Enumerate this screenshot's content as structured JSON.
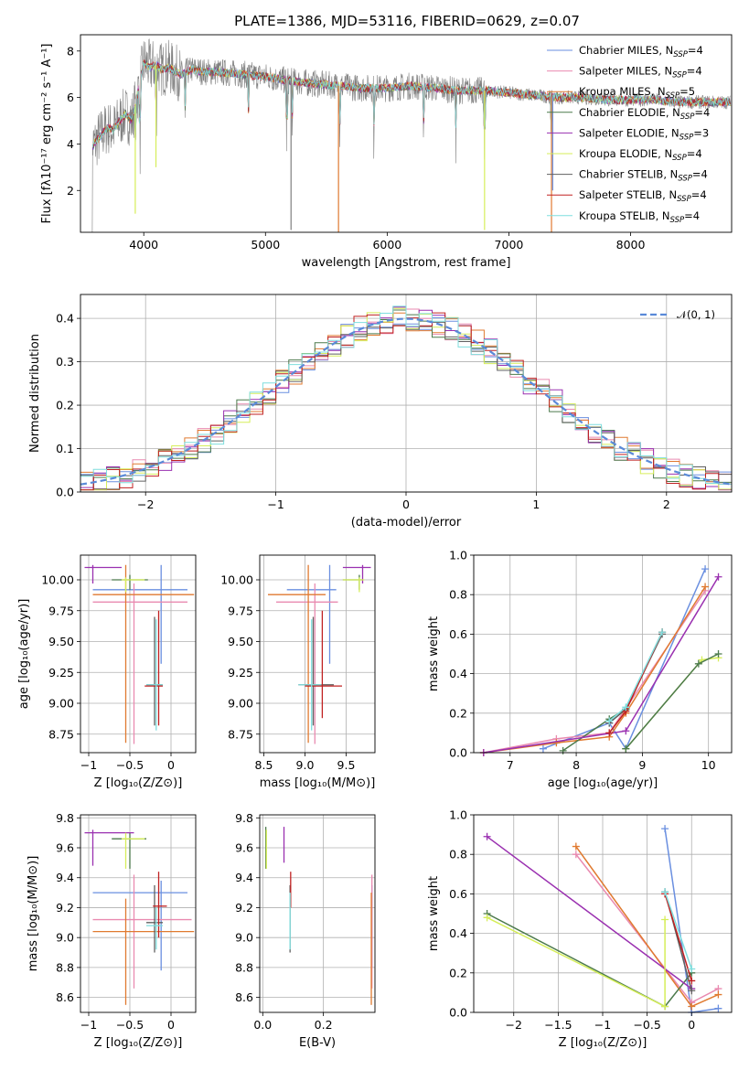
{
  "title": "PLATE=1386, MJD=53116, FIBERID=0629, z=0.07",
  "colors": {
    "Chabrier MILES": "#6a8fe0",
    "Salpeter MILES": "#e98ab0",
    "Kroupa MILES": "#e07a30",
    "Chabrier ELODIE": "#4c7a4c",
    "Salpeter ELODIE": "#9a30b0",
    "Kroupa ELODIE": "#d6ee5a",
    "Chabrier STELIB": "#606060",
    "Salpeter STELIB": "#c02020",
    "Kroupa STELIB": "#7fdede",
    "data": "#808080",
    "normal": "#5a8ad8"
  },
  "chart_data": [
    {
      "id": "spectrum",
      "type": "line",
      "xlabel": "wavelength [Angstrom, rest frame]",
      "ylabel": "Flux [fλ10⁻¹⁷ erg cm⁻² s⁻¹ A⁻¹]",
      "xlim": [
        3480,
        8830
      ],
      "ylim": [
        0.2,
        8.7
      ],
      "xticks": [
        4000,
        5000,
        6000,
        7000,
        8000
      ],
      "yticks": [
        2,
        4,
        6,
        8
      ],
      "legend_position": "right",
      "legend": [
        {
          "text": "Chabrier MILES, N",
          "sub": "SSP",
          "n": "=4",
          "color_key": "Chabrier MILES"
        },
        {
          "text": "Salpeter MILES, N",
          "sub": "SSP",
          "n": "=4",
          "color_key": "Salpeter MILES"
        },
        {
          "text": "Kroupa MILES, N",
          "sub": "SSP",
          "n": "=5",
          "color_key": "Kroupa MILES"
        },
        {
          "text": "Chabrier ELODIE, N",
          "sub": "SSP",
          "n": "=4",
          "color_key": "Chabrier ELODIE"
        },
        {
          "text": "Salpeter ELODIE, N",
          "sub": "SSP",
          "n": "=3",
          "color_key": "Salpeter ELODIE"
        },
        {
          "text": "Kroupa ELODIE, N",
          "sub": "SSP",
          "n": "=4",
          "color_key": "Kroupa ELODIE"
        },
        {
          "text": "Chabrier STELIB, N",
          "sub": "SSP",
          "n": "=4",
          "color_key": "Chabrier STELIB"
        },
        {
          "text": "Salpeter STELIB, N",
          "sub": "SSP",
          "n": "=4",
          "color_key": "Salpeter STELIB"
        },
        {
          "text": "Kroupa STELIB, N",
          "sub": "SSP",
          "n": "=4",
          "color_key": "Kroupa STELIB"
        }
      ],
      "model_continuum": {
        "x": [
          3580,
          3650,
          3700,
          3750,
          3800,
          3850,
          3900,
          3950,
          4000,
          4050,
          4100,
          4150,
          4200,
          4300,
          4400,
          4500,
          4600,
          4800,
          5000,
          5200,
          5400,
          5600,
          5800,
          6000,
          6200,
          6400,
          6600,
          6800,
          7000,
          7200,
          7400,
          7600,
          7800,
          8000,
          8200,
          8400,
          8600,
          8800
        ],
        "y": [
          3.9,
          4.4,
          4.7,
          4.6,
          5.0,
          5.3,
          5.0,
          6.2,
          7.5,
          7.3,
          7.4,
          7.2,
          7.3,
          7.0,
          7.2,
          7.1,
          7.1,
          7.0,
          6.9,
          6.7,
          6.6,
          6.5,
          6.4,
          6.4,
          6.5,
          6.4,
          6.3,
          6.3,
          6.2,
          6.1,
          6.0,
          6.0,
          5.9,
          5.9,
          5.9,
          5.8,
          5.8,
          5.8
        ]
      },
      "absorption_features": [
        3934,
        3969,
        4102,
        4340,
        4861,
        5175,
        5220,
        5610,
        5893,
        6300,
        6563,
        6800,
        7350
      ]
    },
    {
      "id": "residuals",
      "type": "histogram",
      "xlabel": "(data-model)/error",
      "ylabel": "Normed distribution",
      "xlim": [
        -2.5,
        2.5
      ],
      "ylim": [
        0,
        0.455
      ],
      "xticks": [
        -2,
        -1,
        0,
        1,
        2
      ],
      "yticks": [
        0.0,
        0.1,
        0.2,
        0.3,
        0.4
      ],
      "legend_position": "top-right",
      "legend_label": "𝒩(0, 1)",
      "bin_width": 0.1
    },
    {
      "id": "age-vs-Z",
      "type": "errorbar",
      "xlabel": "Z [log₁₀(Z/Z⊙)]",
      "ylabel": "age  [log₁₀(age/yr)]",
      "xlim": [
        -1.1,
        0.3
      ],
      "ylim": [
        8.6,
        10.2
      ],
      "xticks": [
        -1.0,
        -0.5,
        0.0
      ],
      "yticks": [
        8.75,
        9.0,
        9.25,
        9.5,
        9.75,
        10.0
      ],
      "points": [
        {
          "s": "Chabrier MILES",
          "x": -0.12,
          "xe": [
            -0.95,
            0.2
          ],
          "y": 9.92,
          "ye": [
            9.32,
            10.12
          ]
        },
        {
          "s": "Salpeter MILES",
          "x": -0.45,
          "xe": [
            -0.95,
            0.2
          ],
          "y": 9.82,
          "ye": [
            8.67,
            9.97
          ]
        },
        {
          "s": "Kroupa MILES",
          "x": -0.55,
          "xe": [
            -0.95,
            0.28
          ],
          "y": 9.88,
          "ye": [
            8.68,
            10.12
          ]
        },
        {
          "s": "Chabrier ELODIE",
          "x": -0.5,
          "xe": [
            -0.72,
            -0.28
          ],
          "y": 10.0,
          "ye": [
            9.92,
            10.04
          ]
        },
        {
          "s": "Salpeter ELODIE",
          "x": -0.95,
          "xe": [
            -1.05,
            -0.6
          ],
          "y": 10.1,
          "ye": [
            9.97,
            10.12
          ]
        },
        {
          "s": "Kroupa ELODIE",
          "x": -0.55,
          "xe": [
            -0.6,
            -0.32
          ],
          "y": 10.0,
          "ye": [
            9.9,
            10.02
          ]
        },
        {
          "s": "Chabrier STELIB",
          "x": -0.2,
          "xe": [
            -0.3,
            -0.1
          ],
          "y": 9.15,
          "ye": [
            8.82,
            9.7
          ]
        },
        {
          "s": "Salpeter STELIB",
          "x": -0.15,
          "xe": [
            -0.32,
            -0.1
          ],
          "y": 9.14,
          "ye": [
            8.82,
            9.75
          ]
        },
        {
          "s": "Kroupa STELIB",
          "x": -0.18,
          "xe": [
            -0.3,
            -0.1
          ],
          "y": 9.15,
          "ye": [
            8.78,
            9.68
          ]
        }
      ]
    },
    {
      "id": "age-vs-mass",
      "type": "errorbar",
      "xlabel": "mass [log₁₀(M/M⊙)]",
      "ylabel": "",
      "xlim": [
        8.45,
        9.85
      ],
      "ylim": [
        8.6,
        10.2
      ],
      "xticks": [
        8.5,
        9.0,
        9.5
      ],
      "yticks": [
        8.75,
        9.0,
        9.25,
        9.5,
        9.75,
        10.0
      ],
      "points": [
        {
          "s": "Chabrier MILES",
          "x": 9.3,
          "xe": [
            8.78,
            9.38
          ],
          "y": 9.92,
          "ye": [
            9.32,
            10.12
          ]
        },
        {
          "s": "Salpeter MILES",
          "x": 9.12,
          "xe": [
            8.65,
            9.4
          ],
          "y": 9.82,
          "ye": [
            8.67,
            9.97
          ]
        },
        {
          "s": "Kroupa MILES",
          "x": 9.04,
          "xe": [
            8.55,
            9.25
          ],
          "y": 9.88,
          "ye": [
            8.68,
            10.12
          ]
        },
        {
          "s": "Chabrier ELODIE",
          "x": 9.66,
          "xe": [
            9.46,
            9.7
          ],
          "y": 10.0,
          "ye": [
            9.92,
            10.04
          ]
        },
        {
          "s": "Salpeter ELODIE",
          "x": 9.7,
          "xe": [
            9.46,
            9.8
          ],
          "y": 10.1,
          "ye": [
            9.97,
            10.12
          ]
        },
        {
          "s": "Kroupa ELODIE",
          "x": 9.66,
          "xe": [
            9.46,
            9.72
          ],
          "y": 10.0,
          "ye": [
            9.9,
            10.02
          ]
        },
        {
          "s": "Chabrier STELIB",
          "x": 9.1,
          "xe": [
            8.92,
            9.35
          ],
          "y": 9.15,
          "ye": [
            8.82,
            9.7
          ]
        },
        {
          "s": "Salpeter STELIB",
          "x": 9.21,
          "xe": [
            9.0,
            9.45
          ],
          "y": 9.14,
          "ye": [
            8.88,
            9.75
          ]
        },
        {
          "s": "Kroupa STELIB",
          "x": 9.08,
          "xe": [
            8.92,
            9.2
          ],
          "y": 9.15,
          "ye": [
            8.78,
            9.68
          ]
        }
      ]
    },
    {
      "id": "mass-weight-vs-age",
      "type": "line",
      "xlabel": "age  [log₁₀(age/yr)]",
      "ylabel": "mass weight",
      "xlim": [
        6.45,
        10.35
      ],
      "ylim": [
        0,
        1.0
      ],
      "xticks": [
        7,
        8,
        9,
        10
      ],
      "yticks": [
        0.0,
        0.2,
        0.4,
        0.6,
        0.8,
        1.0
      ],
      "series": [
        {
          "s": "Chabrier MILES",
          "x": [
            7.5,
            8.5,
            8.75,
            9.95
          ],
          "y": [
            0.02,
            0.15,
            0.02,
            0.93
          ]
        },
        {
          "s": "Salpeter MILES",
          "x": [
            6.6,
            7.7,
            8.5,
            9.95
          ],
          "y": [
            0.0,
            0.07,
            0.1,
            0.82
          ]
        },
        {
          "s": "Kroupa MILES",
          "x": [
            6.6,
            7.7,
            8.5,
            8.75,
            9.95
          ],
          "y": [
            0.0,
            0.05,
            0.08,
            0.2,
            0.84
          ]
        },
        {
          "s": "Chabrier ELODIE",
          "x": [
            7.8,
            8.5,
            8.75,
            9.3
          ],
          "y": [
            0.01,
            0.17,
            0.22,
            0.61
          ]
        },
        {
          "s": "Salpeter ELODIE",
          "x": [
            6.6,
            8.75,
            10.15
          ],
          "y": [
            0.0,
            0.11,
            0.89
          ]
        },
        {
          "s": "Kroupa ELODIE",
          "x": [
            8.75,
            9.9,
            10.15
          ],
          "y": [
            0.02,
            0.47,
            0.48
          ]
        },
        {
          "s": "Chabrier STELIB",
          "x": [
            8.5,
            8.75,
            9.3
          ],
          "y": [
            0.15,
            0.22,
            0.6
          ]
        },
        {
          "s": "Salpeter STELIB",
          "x": [
            8.5,
            8.75,
            9.3
          ],
          "y": [
            0.1,
            0.21,
            0.61
          ]
        },
        {
          "s": "Kroupa STELIB",
          "x": [
            8.5,
            8.75,
            9.3
          ],
          "y": [
            0.16,
            0.23,
            0.61
          ]
        },
        {
          "s": "Chabrier ELODIE",
          "x": [
            8.75,
            9.85,
            10.15
          ],
          "y": [
            0.02,
            0.45,
            0.5
          ]
        }
      ]
    },
    {
      "id": "mass-vs-Z",
      "type": "errorbar",
      "xlabel": "Z [log₁₀(Z/Z⊙)]",
      "ylabel": "mass [log₁₀(M/M⊙)]",
      "xlim": [
        -1.1,
        0.3
      ],
      "ylim": [
        8.5,
        9.82
      ],
      "xticks": [
        -1.0,
        -0.5,
        0.0
      ],
      "yticks": [
        8.6,
        8.8,
        9.0,
        9.2,
        9.4,
        9.6,
        9.8
      ],
      "points": [
        {
          "s": "Chabrier MILES",
          "x": -0.12,
          "xe": [
            -0.95,
            0.2
          ],
          "y": 9.3,
          "ye": [
            8.78,
            9.38
          ]
        },
        {
          "s": "Salpeter MILES",
          "x": -0.45,
          "xe": [
            -0.95,
            0.25
          ],
          "y": 9.12,
          "ye": [
            8.66,
            9.42
          ]
        },
        {
          "s": "Kroupa MILES",
          "x": -0.55,
          "xe": [
            -0.95,
            0.28
          ],
          "y": 9.04,
          "ye": [
            8.55,
            9.26
          ]
        },
        {
          "s": "Chabrier ELODIE",
          "x": -0.5,
          "xe": [
            -0.72,
            -0.3
          ],
          "y": 9.66,
          "ye": [
            9.46,
            9.7
          ]
        },
        {
          "s": "Salpeter ELODIE",
          "x": -0.95,
          "xe": [
            -1.05,
            -0.45
          ],
          "y": 9.7,
          "ye": [
            9.48,
            9.72
          ]
        },
        {
          "s": "Kroupa ELODIE",
          "x": -0.55,
          "xe": [
            -0.6,
            -0.32
          ],
          "y": 9.66,
          "ye": [
            9.46,
            9.7
          ]
        },
        {
          "s": "Chabrier STELIB",
          "x": -0.2,
          "xe": [
            -0.3,
            -0.1
          ],
          "y": 9.1,
          "ye": [
            8.9,
            9.35
          ]
        },
        {
          "s": "Salpeter STELIB",
          "x": -0.15,
          "xe": [
            -0.22,
            -0.05
          ],
          "y": 9.21,
          "ye": [
            9.0,
            9.44
          ]
        },
        {
          "s": "Kroupa STELIB",
          "x": -0.18,
          "xe": [
            -0.3,
            -0.1
          ],
          "y": 9.08,
          "ye": [
            8.92,
            9.2
          ]
        }
      ]
    },
    {
      "id": "mass-vs-ebv",
      "type": "errorbar",
      "xlabel": "E(B-V)",
      "ylabel": "",
      "xlim": [
        -0.01,
        0.37
      ],
      "ylim": [
        8.5,
        9.82
      ],
      "xticks": [
        0.0,
        0.2
      ],
      "yticks": [
        8.6,
        8.8,
        9.0,
        9.2,
        9.4,
        9.6,
        9.8
      ],
      "points": [
        {
          "s": "Chabrier MILES",
          "x": 0.36,
          "ye": [
            8.8,
            9.35
          ],
          "y": 9.3
        },
        {
          "s": "Salpeter MILES",
          "x": 0.36,
          "ye": [
            8.66,
            9.42
          ],
          "y": 9.12
        },
        {
          "s": "Kroupa MILES",
          "x": 0.358,
          "ye": [
            8.55,
            9.3
          ],
          "y": 9.04
        },
        {
          "s": "Chabrier ELODIE",
          "x": 0.01,
          "ye": [
            9.46,
            9.74
          ],
          "y": 9.66
        },
        {
          "s": "Salpeter ELODIE",
          "x": 0.07,
          "ye": [
            9.5,
            9.74
          ],
          "y": 9.7
        },
        {
          "s": "Kroupa ELODIE",
          "x": 0.012,
          "ye": [
            9.46,
            9.72
          ],
          "y": 9.66
        },
        {
          "s": "Chabrier STELIB",
          "x": 0.09,
          "ye": [
            8.9,
            9.35
          ],
          "y": 9.1
        },
        {
          "s": "Salpeter STELIB",
          "x": 0.092,
          "ye": [
            9.2,
            9.44
          ],
          "y": 9.21
        },
        {
          "s": "Kroupa STELIB",
          "x": 0.09,
          "ye": [
            8.92,
            9.3
          ],
          "y": 9.08
        }
      ]
    },
    {
      "id": "mass-weight-vs-Z",
      "type": "line",
      "xlabel": "Z [log₁₀(Z/Z⊙)]",
      "ylabel": "mass weight",
      "xlim": [
        -2.45,
        0.45
      ],
      "ylim": [
        0,
        1.0
      ],
      "xticks": [
        -2.0,
        -1.5,
        -1.0,
        -0.5,
        0.0
      ],
      "yticks": [
        0.0,
        0.2,
        0.4,
        0.6,
        0.8,
        1.0
      ],
      "series": [
        {
          "s": "Chabrier MILES",
          "x": [
            -0.3,
            0.0,
            0.3
          ],
          "y": [
            0.93,
            0.0,
            0.02
          ]
        },
        {
          "s": "Salpeter MILES",
          "x": [
            -1.3,
            0.0,
            0.3
          ],
          "y": [
            0.8,
            0.05,
            0.12
          ]
        },
        {
          "s": "Kroupa MILES",
          "x": [
            -1.3,
            0.0,
            0.3
          ],
          "y": [
            0.84,
            0.03,
            0.09
          ]
        },
        {
          "s": "Chabrier ELODIE",
          "x": [
            -2.3,
            -0.3,
            0.0
          ],
          "y": [
            0.5,
            0.03,
            0.2
          ]
        },
        {
          "s": "Salpeter ELODIE",
          "x": [
            -2.3,
            0.0
          ],
          "y": [
            0.89,
            0.12
          ]
        },
        {
          "s": "Kroupa ELODIE",
          "x": [
            -2.3,
            -0.3,
            -0.3
          ],
          "y": [
            0.48,
            0.03,
            0.47
          ]
        },
        {
          "s": "Chabrier STELIB",
          "x": [
            -0.3,
            0.0
          ],
          "y": [
            0.61,
            0.11
          ]
        },
        {
          "s": "Salpeter STELIB",
          "x": [
            -0.3,
            0.0
          ],
          "y": [
            0.6,
            0.16
          ]
        },
        {
          "s": "Kroupa STELIB",
          "x": [
            -0.3,
            0.0
          ],
          "y": [
            0.61,
            0.22
          ]
        }
      ]
    }
  ]
}
